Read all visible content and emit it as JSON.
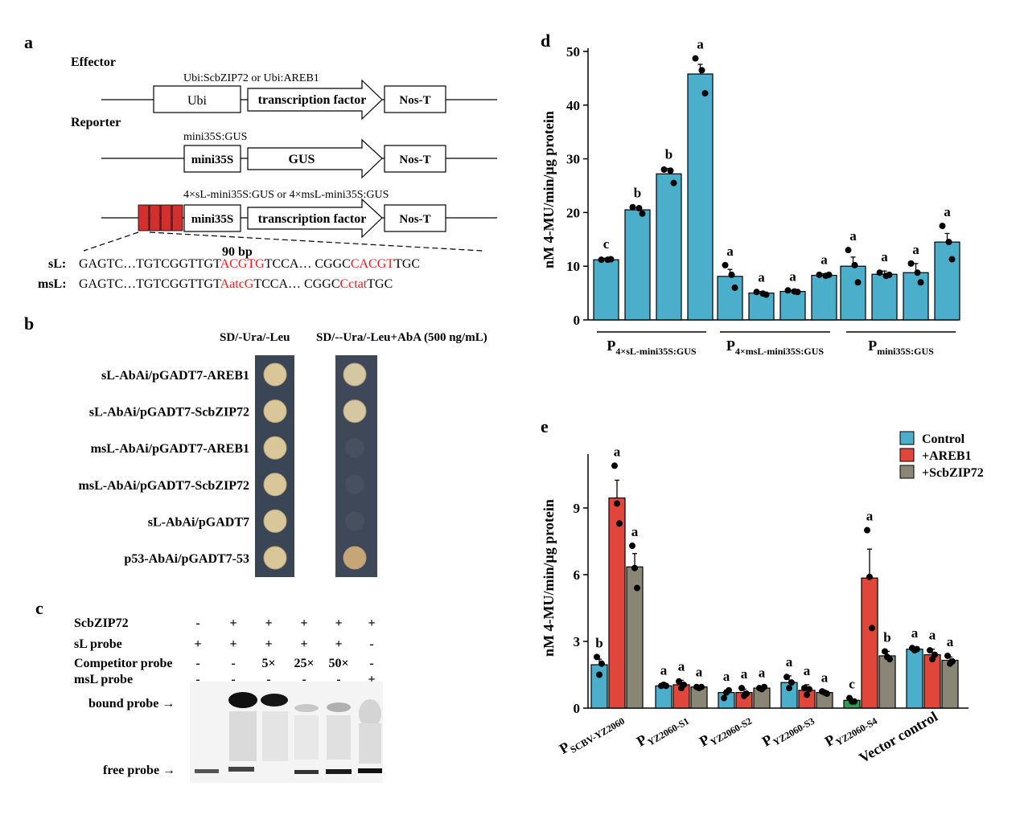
{
  "panel_a": {
    "letter": "a",
    "effector_label": "Effector",
    "effector_construct": "Ubi:ScbZIP72 or Ubi:AREB1",
    "ubi": "Ubi",
    "tf": "transcription factor",
    "nos": "Nos-T",
    "reporter_label": "Reporter",
    "reporter_construct": "mini35S:GUS",
    "mini35s": "mini35S",
    "gus": "GUS",
    "construct3": "4×sL-mini35S:GUS or 4×msL-mini35S:GUS",
    "bp": "90 bp",
    "sL_label": "sL:",
    "sL_seq1": "GAGTC…TGTCGGTTGT",
    "sL_red1": "ACGTG",
    "sL_seq2": "TCCA… CGGC",
    "sL_red2": "CACGT",
    "sL_seq3": "TGC",
    "msL_label": "msL:",
    "msL_seq1": "GAGTC…TGTCGGTTGT",
    "msL_red1": "AatcG",
    "msL_seq2": "TCCA… CGGC",
    "msL_red2": "Cctat",
    "msL_seq3": "TGC"
  },
  "panel_b": {
    "letter": "b",
    "col1": "SD/-Ura/-Leu",
    "col2": "SD/--Ura/-Leu+AbA (500 ng/mL)",
    "rows": [
      {
        "label": "sL-AbAi/pGADT7-AREB1",
        "grow1": true,
        "grow2": true
      },
      {
        "label": "sL-AbAi/pGADT7-ScbZIP72",
        "grow1": true,
        "grow2": true
      },
      {
        "label": "msL-AbAi/pGADT7-AREB1",
        "grow1": true,
        "grow2": false
      },
      {
        "label": "msL-AbAi/pGADT7-ScbZIP72",
        "grow1": true,
        "grow2": false
      },
      {
        "label": "sL-AbAi/pGADT7",
        "grow1": true,
        "grow2": false
      },
      {
        "label": "p53-AbAi/pGADT7-53",
        "grow1": true,
        "grow2": true
      }
    ]
  },
  "panel_c": {
    "letter": "c",
    "row_labels": [
      "ScbZIP72",
      "sL probe",
      "Competitor probe",
      "msL probe"
    ],
    "row_values": [
      [
        "-",
        "+",
        "+",
        "+",
        "+",
        "+"
      ],
      [
        "+",
        "+",
        "+",
        "+",
        "+",
        "-"
      ],
      [
        "-",
        "-",
        "5×",
        "25×",
        "50×",
        "-"
      ],
      [
        "-",
        "-",
        "-",
        "-",
        "-",
        "+"
      ]
    ],
    "bound": "bound probe →",
    "free": "free probe →"
  },
  "panel_d": {
    "letter": "d",
    "ylabel": "nM 4-MU/min/μg protein",
    "ylim": [
      0,
      50
    ],
    "yticks": [
      "0",
      "10",
      "20",
      "30",
      "40",
      "50"
    ],
    "groups": [
      {
        "name": "P",
        "sub": "4×sL-mini35S:GUS"
      },
      {
        "name": "P",
        "sub": "4×msL-mini35S:GUS"
      },
      {
        "name": "P",
        "sub": "mini35S:GUS"
      }
    ],
    "color": "#4BAECB"
  },
  "panel_e": {
    "letter": "e",
    "ylabel": "nM 4-MU/min/μg protein",
    "ylim": [
      0,
      11
    ],
    "yticks": [
      "0",
      "3",
      "6",
      "9"
    ],
    "legend": [
      {
        "label": "Control",
        "color": "#4BAECB"
      },
      {
        "label": "+AREB1",
        "color": "#E0473A"
      },
      {
        "label": "+ScbZIP72",
        "color": "#8A8676"
      }
    ],
    "categories": [
      {
        "name": "P",
        "sub": "SCBV-YZ2060"
      },
      {
        "name": "P",
        "sub": "YZ2060-S1"
      },
      {
        "name": "P",
        "sub": "YZ2060-S2"
      },
      {
        "name": "P",
        "sub": "YZ2060-S3"
      },
      {
        "name": "P",
        "sub": "YZ2060-S4"
      },
      {
        "name": "Vector control",
        "sub": ""
      }
    ]
  },
  "chart_data": [
    {
      "type": "bar",
      "ylabel": "nM 4-MU/min/μg protein",
      "ylim": [
        0,
        50
      ],
      "groups": [
        "P4×sL-mini35S:GUS",
        "P4×msL-mini35S:GUS",
        "Pmini35S:GUS"
      ],
      "values": [
        11.2,
        20.5,
        27.2,
        45.8,
        8.1,
        5.0,
        5.3,
        8.3,
        10.0,
        8.5,
        8.8,
        14.5
      ],
      "errors": [
        0.3,
        0.4,
        1.0,
        1.8,
        1.3,
        0.3,
        0.2,
        0.3,
        1.7,
        0.6,
        1.7,
        1.6
      ],
      "points": [
        [
          11.2,
          11.2,
          11.3
        ],
        [
          21.0,
          20.8,
          19.8
        ],
        [
          28.0,
          27.8,
          25.5
        ],
        [
          48.7,
          46.5,
          42.2
        ],
        [
          10.2,
          8.4,
          6.0
        ],
        [
          5.2,
          4.9,
          4.7
        ],
        [
          5.5,
          5.3,
          5.2
        ],
        [
          8.4,
          8.2,
          8.4
        ],
        [
          13.0,
          10.2,
          7.0
        ],
        [
          8.8,
          8.2,
          8.4
        ],
        [
          10.5,
          8.8,
          7.0
        ],
        [
          17.5,
          14.5,
          11.3
        ]
      ],
      "letters": [
        "c",
        "b",
        "b",
        "a",
        "a",
        "a",
        "a",
        "a",
        "a",
        "a",
        "a",
        "a"
      ]
    },
    {
      "type": "bar",
      "ylabel": "nM 4-MU/min/μg protein",
      "ylim": [
        0,
        11
      ],
      "categories": [
        "PSCBV-YZ2060",
        "PYZ2060-S1",
        "PYZ2060-S2",
        "PYZ2060-S3",
        "PYZ2060-S4",
        "Vector control"
      ],
      "series": [
        {
          "name": "Control",
          "values": [
            1.95,
            1.0,
            0.7,
            1.15,
            0.35,
            2.65
          ],
          "errors": [
            0.25,
            0.07,
            0.1,
            0.3,
            0.05,
            0.1
          ],
          "letters": [
            "b",
            "a",
            "a",
            "a",
            "c",
            "a"
          ],
          "points": [
            [
              2.3,
              1.5,
              2.0
            ],
            [
              1.0,
              1.05,
              1.0
            ],
            [
              0.45,
              0.7,
              0.8
            ],
            [
              1.4,
              0.9,
              1.15
            ],
            [
              0.45,
              0.3,
              0.3
            ],
            [
              2.7,
              2.6,
              2.65
            ]
          ]
        },
        {
          "name": "+AREB1",
          "values": [
            9.45,
            1.05,
            0.7,
            0.8,
            5.85,
            2.4
          ],
          "errors": [
            0.8,
            0.2,
            0.15,
            0.25,
            1.3,
            0.25
          ],
          "letters": [
            "a",
            "a",
            "a",
            "a",
            "a",
            "a"
          ],
          "points": [
            [
              10.9,
              9.2,
              8.3
            ],
            [
              1.2,
              0.9,
              1.05
            ],
            [
              0.9,
              0.55,
              0.65
            ],
            [
              0.9,
              0.6,
              0.85
            ],
            [
              8.0,
              5.9,
              3.6
            ],
            [
              2.6,
              2.2,
              2.4
            ]
          ]
        },
        {
          "name": "+ScbZIP72",
          "values": [
            6.35,
            0.95,
            0.9,
            0.7,
            2.35,
            2.15
          ],
          "errors": [
            0.6,
            0.05,
            0.05,
            0.05,
            0.2,
            0.15
          ],
          "letters": [
            "a",
            "a",
            "a",
            "a",
            "b",
            "a"
          ],
          "points": [
            [
              7.3,
              6.3,
              5.4
            ],
            [
              0.95,
              0.9,
              0.95
            ],
            [
              0.9,
              0.85,
              0.95
            ],
            [
              0.75,
              0.7,
              0.65
            ],
            [
              2.55,
              2.3,
              2.2
            ],
            [
              2.35,
              2.0,
              2.1
            ]
          ]
        }
      ]
    }
  ]
}
